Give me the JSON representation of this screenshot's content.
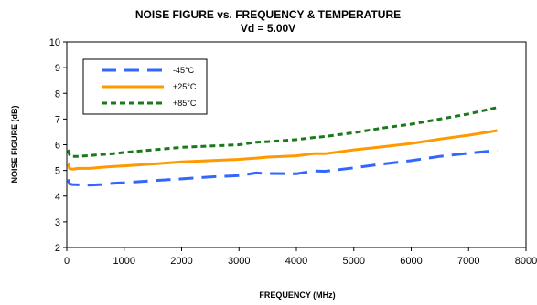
{
  "chart_data": {
    "type": "line",
    "title": "NOISE FIGURE vs. FREQUENCY & TEMPERATURE",
    "subtitle": "Vd = 5.00V",
    "xlabel": "FREQUENCY (MHz)",
    "ylabel": "NOISE FIGURE (dB)",
    "xlim": [
      0,
      8000
    ],
    "ylim": [
      2,
      10
    ],
    "xticks": [
      0,
      1000,
      2000,
      3000,
      4000,
      5000,
      6000,
      7000,
      8000
    ],
    "yticks": [
      2,
      3,
      4,
      5,
      6,
      7,
      8,
      9,
      10
    ],
    "grid": false,
    "legend_position": "top-left",
    "series": [
      {
        "name": "-45°C",
        "color": "#3366ff",
        "dash": "long-dash",
        "x": [
          20,
          50,
          100,
          200,
          400,
          600,
          800,
          1000,
          1500,
          2000,
          2500,
          3000,
          3300,
          3500,
          4000,
          4300,
          4500,
          5000,
          5500,
          6000,
          6500,
          7000,
          7500
        ],
        "y": [
          4.65,
          4.47,
          4.45,
          4.44,
          4.43,
          4.45,
          4.5,
          4.52,
          4.6,
          4.67,
          4.75,
          4.8,
          4.9,
          4.88,
          4.87,
          4.98,
          4.97,
          5.1,
          5.25,
          5.38,
          5.55,
          5.67,
          5.78
        ]
      },
      {
        "name": "+25°C",
        "color": "#ff9900",
        "dash": "solid",
        "x": [
          20,
          50,
          100,
          200,
          400,
          600,
          800,
          1000,
          1500,
          2000,
          2500,
          3000,
          3300,
          3500,
          4000,
          4300,
          4500,
          5000,
          5500,
          6000,
          6500,
          7000,
          7500
        ],
        "y": [
          5.3,
          5.07,
          5.05,
          5.08,
          5.08,
          5.12,
          5.15,
          5.18,
          5.25,
          5.33,
          5.38,
          5.43,
          5.48,
          5.52,
          5.57,
          5.65,
          5.65,
          5.8,
          5.92,
          6.05,
          6.22,
          6.37,
          6.55
        ]
      },
      {
        "name": "+85°C",
        "color": "#1a7a1a",
        "dash": "short-dash",
        "x": [
          20,
          50,
          100,
          200,
          400,
          600,
          800,
          1000,
          1500,
          2000,
          2500,
          3000,
          3300,
          3500,
          4000,
          4300,
          4500,
          5000,
          5500,
          6000,
          6500,
          7000,
          7500
        ],
        "y": [
          5.8,
          5.6,
          5.55,
          5.55,
          5.58,
          5.62,
          5.65,
          5.7,
          5.8,
          5.9,
          5.95,
          6.0,
          6.1,
          6.12,
          6.2,
          6.28,
          6.32,
          6.47,
          6.65,
          6.8,
          7.0,
          7.2,
          7.45
        ]
      }
    ]
  }
}
